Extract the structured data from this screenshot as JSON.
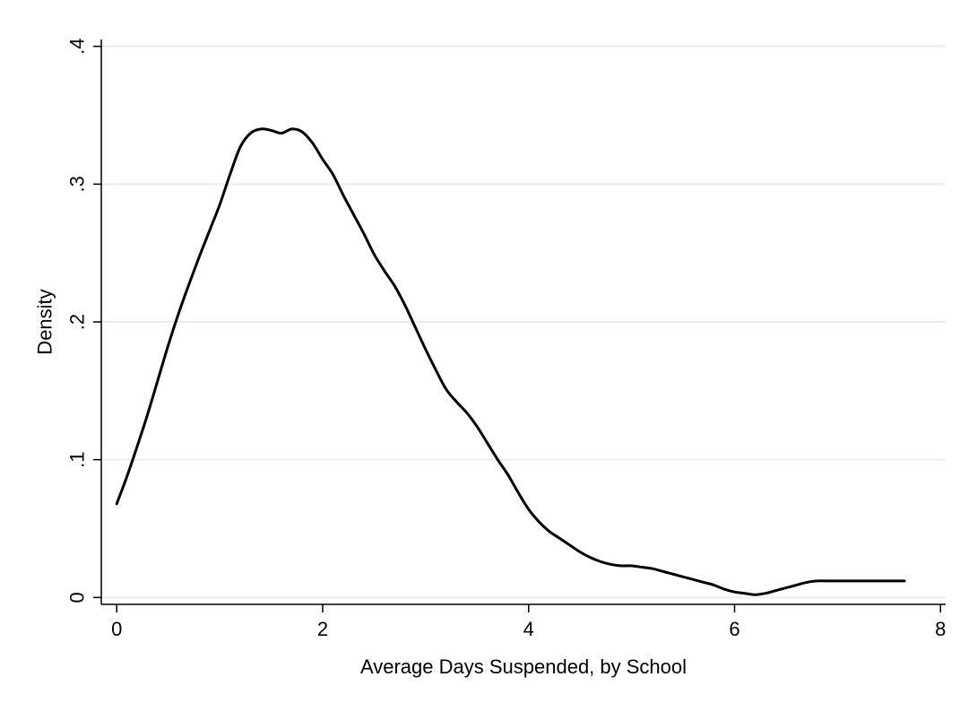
{
  "chart_data": {
    "type": "line",
    "title": "",
    "xlabel": "Average Days Suspended, by School",
    "ylabel": "Density",
    "xlim": [
      -0.15,
      8.05
    ],
    "ylim": [
      -0.005,
      0.405
    ],
    "x_ticks": [
      0,
      2,
      4,
      6,
      8
    ],
    "x_tick_labels": [
      "0",
      "2",
      "4",
      "6",
      "8"
    ],
    "y_ticks": [
      0,
      0.1,
      0.2,
      0.3,
      0.4
    ],
    "y_tick_labels": [
      "0",
      ".1",
      ".2",
      ".3",
      ".4"
    ],
    "y_tick_labels_rotated": true,
    "grid": "horizontal",
    "legend": "none",
    "colors": {
      "background": "#ffffff",
      "line": "#000000",
      "grid": "#e6efef",
      "axis": "#000000"
    },
    "series": [
      {
        "x": [
          0.0,
          0.1,
          0.2,
          0.3,
          0.4,
          0.5,
          0.6,
          0.7,
          0.8,
          0.9,
          1.0,
          1.1,
          1.2,
          1.3,
          1.4,
          1.5,
          1.6,
          1.7,
          1.8,
          1.9,
          2.0,
          2.1,
          2.2,
          2.3,
          2.4,
          2.5,
          2.6,
          2.7,
          2.8,
          2.9,
          3.0,
          3.1,
          3.2,
          3.3,
          3.4,
          3.5,
          3.6,
          3.7,
          3.8,
          3.9,
          4.0,
          4.1,
          4.2,
          4.3,
          4.4,
          4.5,
          4.6,
          4.7,
          4.8,
          4.9,
          5.0,
          5.1,
          5.2,
          5.3,
          5.4,
          5.5,
          5.6,
          5.7,
          5.8,
          5.9,
          6.0,
          6.1,
          6.2,
          6.3,
          6.4,
          6.5,
          6.6,
          6.7,
          6.8,
          6.9,
          7.0,
          7.1,
          7.2,
          7.3,
          7.4,
          7.5,
          7.6,
          7.65
        ],
        "y": [
          0.068,
          0.088,
          0.11,
          0.133,
          0.158,
          0.183,
          0.206,
          0.227,
          0.247,
          0.266,
          0.285,
          0.307,
          0.327,
          0.337,
          0.34,
          0.339,
          0.337,
          0.34,
          0.338,
          0.33,
          0.318,
          0.307,
          0.292,
          0.278,
          0.264,
          0.249,
          0.237,
          0.226,
          0.212,
          0.196,
          0.18,
          0.165,
          0.151,
          0.142,
          0.134,
          0.124,
          0.112,
          0.1,
          0.089,
          0.076,
          0.064,
          0.055,
          0.048,
          0.043,
          0.038,
          0.033,
          0.029,
          0.026,
          0.024,
          0.023,
          0.023,
          0.022,
          0.021,
          0.019,
          0.017,
          0.015,
          0.013,
          0.011,
          0.009,
          0.006,
          0.004,
          0.003,
          0.002,
          0.003,
          0.005,
          0.007,
          0.009,
          0.011,
          0.012,
          0.012,
          0.012,
          0.012,
          0.012,
          0.012,
          0.012,
          0.012,
          0.012,
          0.012
        ]
      }
    ]
  }
}
